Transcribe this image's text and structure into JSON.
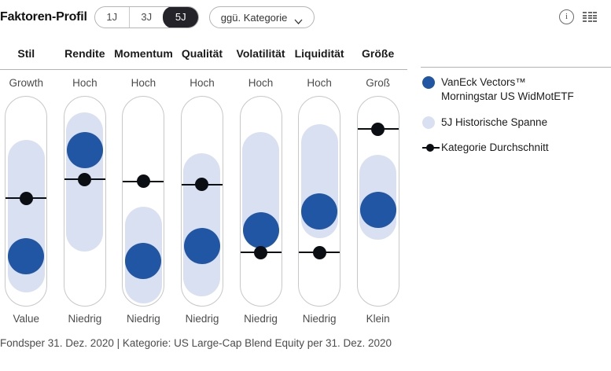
{
  "header": {
    "title": "Faktoren-Profil",
    "period_options": [
      "1J",
      "3J",
      "5J"
    ],
    "selected_period": "5J",
    "comparison_dropdown": "ggü. Kategorie"
  },
  "legend": {
    "fund": {
      "line1": "VanEck Vectors™",
      "line2": "Morningstar US WidMotETF"
    },
    "range": {
      "label": "5J Historische Spanne"
    },
    "category": {
      "label": "Kategorie Durchschnitt"
    }
  },
  "colors": {
    "fund_blue": "#2056a4",
    "range_blue": "#d9e0f1",
    "category_black": "#0b0e13",
    "selected_segment_bg": "#232329"
  },
  "chart_data": {
    "type": "factor-profile",
    "scale_note": "values are percent of column height; 0 = top label (Hoch/Growth/Groß), 100 = bottom label (Niedrig/Value/Klein)",
    "legend_position": "right",
    "factors": [
      {
        "name": "Stil",
        "top_label": "Growth",
        "bottom_label": "Value",
        "range_pct": [
          20.5,
          93.5
        ],
        "fund_pct": 76.5,
        "category_pct": 48.5
      },
      {
        "name": "Rendite",
        "top_label": "Hoch",
        "bottom_label": "Niedrig",
        "range_pct": [
          7.5,
          74
        ],
        "fund_pct": 25.5,
        "category_pct": 39.5
      },
      {
        "name": "Momentum",
        "top_label": "Hoch",
        "bottom_label": "Niedrig",
        "range_pct": [
          52.5,
          99
        ],
        "fund_pct": 78.5,
        "category_pct": 40.5
      },
      {
        "name": "Qualität",
        "top_label": "Hoch",
        "bottom_label": "Niedrig",
        "range_pct": [
          27,
          95.5
        ],
        "fund_pct": 71.5,
        "category_pct": 42
      },
      {
        "name": "Volatilität",
        "top_label": "Hoch",
        "bottom_label": "Niedrig",
        "range_pct": [
          17,
          69
        ],
        "fund_pct": 64,
        "category_pct": 74.5
      },
      {
        "name": "Liquidität",
        "top_label": "Hoch",
        "bottom_label": "Niedrig",
        "range_pct": [
          13,
          67.5
        ],
        "fund_pct": 55,
        "category_pct": 74.5
      },
      {
        "name": "Größe",
        "top_label": "Groß",
        "bottom_label": "Klein",
        "range_pct": [
          28,
          68.5
        ],
        "fund_pct": 54,
        "category_pct": 15.5
      }
    ]
  },
  "footer": "Fondsper 31. Dez. 2020 | Kategorie: US Large-Cap Blend Equity per 31. Dez. 2020"
}
